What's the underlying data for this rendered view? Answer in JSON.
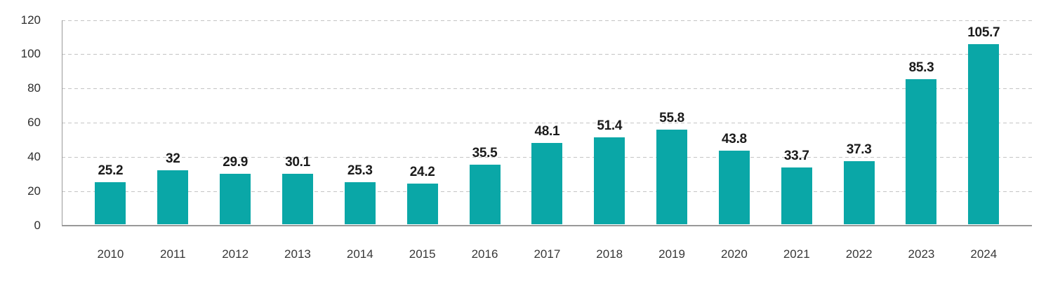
{
  "chart_data": {
    "type": "bar",
    "categories": [
      "2010",
      "2011",
      "2012",
      "2013",
      "2014",
      "2015",
      "2016",
      "2017",
      "2018",
      "2019",
      "2020",
      "2021",
      "2022",
      "2023",
      "2024"
    ],
    "values": [
      25.2,
      32,
      29.9,
      30.1,
      25.3,
      24.2,
      35.5,
      48.1,
      51.4,
      55.8,
      43.8,
      33.7,
      37.3,
      85.3,
      105.7
    ],
    "value_labels": [
      "25.2",
      "32",
      "29.9",
      "30.1",
      "25.3",
      "24.2",
      "35.5",
      "48.1",
      "51.4",
      "55.8",
      "43.8",
      "33.7",
      "37.3",
      "85.3",
      "105.7"
    ],
    "ylim": [
      0,
      120
    ],
    "y_ticks": [
      0,
      20,
      40,
      60,
      80,
      100,
      120
    ],
    "grid": "horizontal-dashed",
    "legend": null,
    "colors": {
      "bar": "#0AA7A7",
      "gridline": "#c4c4c4",
      "axis": "#999999",
      "value_label": "#1b1b1b",
      "tick_label": "#383838"
    }
  }
}
